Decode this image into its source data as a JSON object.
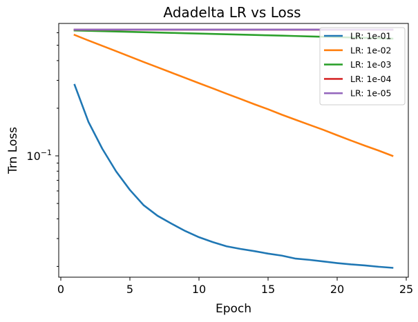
{
  "chart_data": {
    "type": "line",
    "title": "Adadelta LR vs Loss",
    "xlabel": "Epoch",
    "ylabel": "Trn Loss",
    "yscale": "log",
    "xlim": [
      -0.15,
      25.15
    ],
    "ylim": [
      0.0171,
      0.687
    ],
    "xticks": [
      0,
      5,
      10,
      15,
      20,
      25
    ],
    "yticks_major": [
      {
        "value": 0.1,
        "base": "10",
        "exp": "−1"
      }
    ],
    "grid": false,
    "legend_position": "top-right",
    "x": [
      1,
      2,
      3,
      4,
      5,
      6,
      7,
      8,
      9,
      10,
      11,
      12,
      13,
      14,
      15,
      16,
      17,
      18,
      19,
      20,
      21,
      22,
      23,
      24
    ],
    "series": [
      {
        "name": "LR: 1e-01",
        "color": "#1f77b4",
        "values": [
          0.281,
          0.164,
          0.111,
          0.0798,
          0.0609,
          0.0487,
          0.0418,
          0.0373,
          0.0335,
          0.0306,
          0.0285,
          0.0268,
          0.0258,
          0.025,
          0.0241,
          0.0234,
          0.0224,
          0.022,
          0.0215,
          0.021,
          0.0206,
          0.0203,
          0.0199,
          0.0196
        ]
      },
      {
        "name": "LR: 1e-02",
        "color": "#ff7f0e",
        "values": [
          0.581,
          0.536,
          0.496,
          0.459,
          0.424,
          0.392,
          0.363,
          0.336,
          0.311,
          0.288,
          0.267,
          0.247,
          0.229,
          0.212,
          0.197,
          0.182,
          0.169,
          0.157,
          0.146,
          0.135,
          0.125,
          0.116,
          0.108,
          0.1
        ]
      },
      {
        "name": "LR: 1e-03",
        "color": "#2ca02c",
        "values": [
          0.62,
          0.617,
          0.614,
          0.611,
          0.608,
          0.605,
          0.602,
          0.599,
          0.596,
          0.593,
          0.59,
          0.587,
          0.584,
          0.581,
          0.578,
          0.575,
          0.572,
          0.569,
          0.566,
          0.563,
          0.56,
          0.557,
          0.554,
          0.551
        ]
      },
      {
        "name": "LR: 1e-04",
        "color": "#d62728",
        "values": [
          0.627,
          0.627,
          0.627,
          0.627,
          0.627,
          0.627,
          0.627,
          0.627,
          0.627,
          0.627,
          0.627,
          0.627,
          0.627,
          0.627,
          0.627,
          0.627,
          0.627,
          0.627,
          0.627,
          0.627,
          0.627,
          0.627,
          0.627,
          0.627
        ]
      },
      {
        "name": "LR: 1e-05",
        "color": "#9467bd",
        "values": [
          0.628,
          0.628,
          0.628,
          0.628,
          0.628,
          0.628,
          0.628,
          0.628,
          0.628,
          0.628,
          0.628,
          0.628,
          0.628,
          0.628,
          0.628,
          0.628,
          0.628,
          0.628,
          0.628,
          0.628,
          0.628,
          0.628,
          0.628,
          0.628
        ]
      }
    ]
  }
}
